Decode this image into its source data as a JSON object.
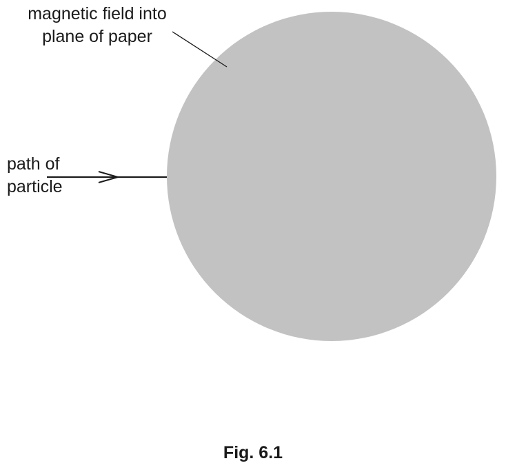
{
  "labels": {
    "field": [
      "magnetic field into",
      "plane of paper"
    ],
    "path": [
      "path of",
      "particle"
    ]
  },
  "caption": "Fig. 6.1",
  "colors": {
    "field_region": "#c2c2c2",
    "ink": "#1a1a1a"
  }
}
